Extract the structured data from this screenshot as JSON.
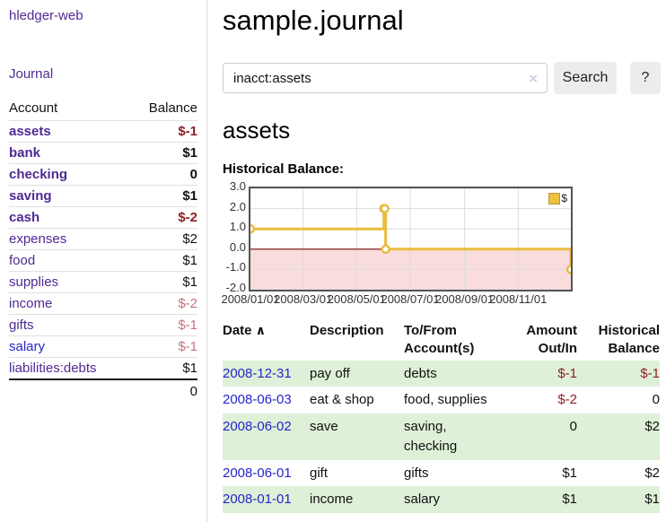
{
  "app": {
    "brand": "hledger-web",
    "nav_journal": "Journal"
  },
  "sidebar": {
    "headers": {
      "account": "Account",
      "balance": "Balance"
    },
    "accounts": [
      {
        "name": "assets",
        "indent": 1,
        "bold": true,
        "balance": "$-1",
        "negative": "strong"
      },
      {
        "name": "bank",
        "indent": 2,
        "bold": true,
        "balance": "$1",
        "negative": null
      },
      {
        "name": "checking",
        "indent": 3,
        "bold": true,
        "balance": "0",
        "negative": null
      },
      {
        "name": "saving",
        "indent": 3,
        "bold": true,
        "balance": "$1",
        "negative": null
      },
      {
        "name": "cash",
        "indent": 2,
        "bold": true,
        "balance": "$-2",
        "negative": "strong"
      },
      {
        "name": "expenses",
        "indent": 1,
        "bold": false,
        "balance": "$2",
        "negative": null
      },
      {
        "name": "food",
        "indent": 2,
        "bold": false,
        "balance": "$1",
        "negative": null
      },
      {
        "name": "supplies",
        "indent": 2,
        "bold": false,
        "balance": "$1",
        "negative": null
      },
      {
        "name": "income",
        "indent": 1,
        "bold": false,
        "balance": "$-2",
        "negative": "soft"
      },
      {
        "name": "gifts",
        "indent": 2,
        "bold": false,
        "balance": "$-1",
        "negative": "soft"
      },
      {
        "name": "salary",
        "indent": 2,
        "bold": false,
        "balance": "$-1",
        "negative": "soft",
        "link": "blue"
      },
      {
        "name": "liabilities:debts",
        "indent": 1,
        "bold": false,
        "balance": "$1",
        "negative": null
      }
    ],
    "total": "0"
  },
  "header": {
    "title": "sample.journal"
  },
  "search": {
    "value": "inacct:assets",
    "clear_icon": "×",
    "button_label": "Search",
    "help_label": "?"
  },
  "account_page": {
    "heading": "assets",
    "chart_label": "Historical Balance:"
  },
  "chart_data": {
    "type": "line",
    "style": "step-after",
    "title": "Historical Balance",
    "legend_label": "$",
    "legend_position": "top-right",
    "grid": true,
    "x_range": [
      "2008-01-01",
      "2008-12-31"
    ],
    "ylim": [
      -2,
      3
    ],
    "y_ticks": [
      3.0,
      2.0,
      1.0,
      0.0,
      -1.0,
      -2.0
    ],
    "x_ticks": [
      {
        "date": "2008-01-01",
        "label": "2008/01/01"
      },
      {
        "date": "2008-03-01",
        "label": "2008/03/01"
      },
      {
        "date": "2008-05-01",
        "label": "2008/05/01"
      },
      {
        "date": "2008-07-01",
        "label": "2008/07/01"
      },
      {
        "date": "2008-09-01",
        "label": "2008/09/01"
      },
      {
        "date": "2008-11-01",
        "label": "2008/11/01"
      }
    ],
    "series": [
      {
        "name": "$",
        "points": [
          {
            "date": "2008-01-01",
            "value": 1
          },
          {
            "date": "2008-06-01",
            "value": 2
          },
          {
            "date": "2008-06-02",
            "value": 2
          },
          {
            "date": "2008-06-03",
            "value": 0
          },
          {
            "date": "2008-12-31",
            "value": -1
          }
        ]
      }
    ],
    "line_color": "#e9bb40",
    "negative_region_color": "#f9dcdc",
    "zero_line_color": "#7a0c0c"
  },
  "register": {
    "headers": {
      "date": "Date",
      "sort_icon": "∧",
      "description": "Description",
      "tofrom": "To/From Account(s)",
      "amount": "Amount Out/In",
      "balance": "Historical Balance"
    },
    "rows": [
      {
        "date": "2008-12-31",
        "description": "pay off",
        "accounts": "debts",
        "amount": "$-1",
        "amount_negative": true,
        "balance": "$-1",
        "balance_negative": true
      },
      {
        "date": "2008-06-03",
        "description": "eat & shop",
        "accounts": "food, supplies",
        "amount": "$-2",
        "amount_negative": true,
        "balance": "0",
        "balance_negative": false
      },
      {
        "date": "2008-06-02",
        "description": "save",
        "accounts": "saving, checking",
        "amount": "0",
        "amount_negative": false,
        "balance": "$2",
        "balance_negative": false
      },
      {
        "date": "2008-06-01",
        "description": "gift",
        "accounts": "gifts",
        "amount": "$1",
        "amount_negative": false,
        "balance": "$2",
        "balance_negative": false
      },
      {
        "date": "2008-01-01",
        "description": "income",
        "accounts": "salary",
        "amount": "$1",
        "amount_negative": false,
        "balance": "$1",
        "balance_negative": false
      }
    ]
  },
  "colors": {
    "accent_purple": "#4f2a93",
    "link_blue": "#2525cc",
    "negative_strong": "#8f1f26",
    "negative_soft": "#c4737c",
    "row_green": "#dff0d8",
    "chart_gold": "#e9bb40",
    "chart_negative_fill": "#f9dcdc",
    "chart_zero_line": "#7a0c0c"
  }
}
